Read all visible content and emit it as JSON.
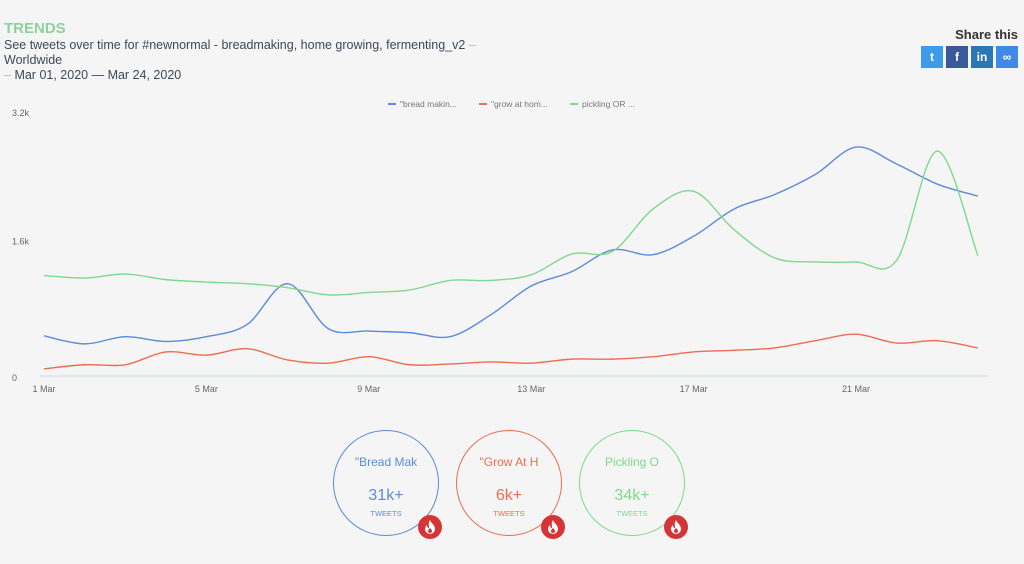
{
  "header": {
    "title": "TRENDS",
    "subtitle_main": "See tweets over time for #newnormal - breadmaking, home growing, fermenting_v2",
    "sep": " – ",
    "region": "Worldwide",
    "date_start": "Mar 01, 2020",
    "date_sep": " — ",
    "date_end": "Mar 24, 2020"
  },
  "share": {
    "label": "Share this",
    "buttons": [
      {
        "icon": "twitter-icon",
        "glyph": "t",
        "color": "#3d9be9"
      },
      {
        "icon": "facebook-icon",
        "glyph": "f",
        "color": "#3b5998"
      },
      {
        "icon": "linkedin-icon",
        "glyph": "in",
        "color": "#2a77b3"
      },
      {
        "icon": "link-icon",
        "glyph": "∞",
        "color": "#3f8ae6"
      }
    ]
  },
  "chart_data": {
    "type": "line",
    "x": [
      "1 Mar",
      "2 Mar",
      "3 Mar",
      "4 Mar",
      "5 Mar",
      "6 Mar",
      "7 Mar",
      "8 Mar",
      "9 Mar",
      "10 Mar",
      "11 Mar",
      "12 Mar",
      "13 Mar",
      "14 Mar",
      "15 Mar",
      "16 Mar",
      "17 Mar",
      "18 Mar",
      "19 Mar",
      "20 Mar",
      "21 Mar",
      "22 Mar",
      "23 Mar",
      "24 Mar"
    ],
    "xticks": [
      "1 Mar",
      "5 Mar",
      "9 Mar",
      "13 Mar",
      "17 Mar",
      "21 Mar"
    ],
    "yticks": [
      "0",
      "1.6k",
      "3.2k"
    ],
    "ylim": [
      0,
      3200
    ],
    "legend_position": "top",
    "series": [
      {
        "name": "\"bread makin...",
        "color": "#5b8bd9",
        "values": [
          500,
          400,
          490,
          430,
          490,
          640,
          1150,
          590,
          560,
          540,
          490,
          760,
          1120,
          1300,
          1570,
          1510,
          1740,
          2080,
          2260,
          2510,
          2850,
          2640,
          2390,
          2240
        ]
      },
      {
        "name": "\"grow at hom...",
        "color": "#ee6c52",
        "values": [
          90,
          140,
          140,
          300,
          260,
          340,
          200,
          160,
          240,
          140,
          150,
          175,
          160,
          210,
          210,
          240,
          300,
          320,
          350,
          440,
          520,
          410,
          440,
          350
        ]
      },
      {
        "name": "pickling OR ...",
        "color": "#7fd88f",
        "values": [
          1250,
          1220,
          1270,
          1200,
          1170,
          1150,
          1100,
          1010,
          1040,
          1070,
          1190,
          1190,
          1260,
          1520,
          1550,
          2080,
          2300,
          1820,
          1470,
          1420,
          1420,
          1440,
          2800,
          1500
        ]
      }
    ]
  },
  "cards": [
    {
      "name": "\"Bread Mak",
      "value": "31k+",
      "unit": "TWEETS",
      "color": "#5b8bd9"
    },
    {
      "name": "\"Grow At H",
      "value": "6k+",
      "unit": "TWEETS",
      "color": "#ee6c52"
    },
    {
      "name": "Pickling O",
      "value": "34k+",
      "unit": "TWEETS",
      "color": "#7fd88f"
    }
  ]
}
